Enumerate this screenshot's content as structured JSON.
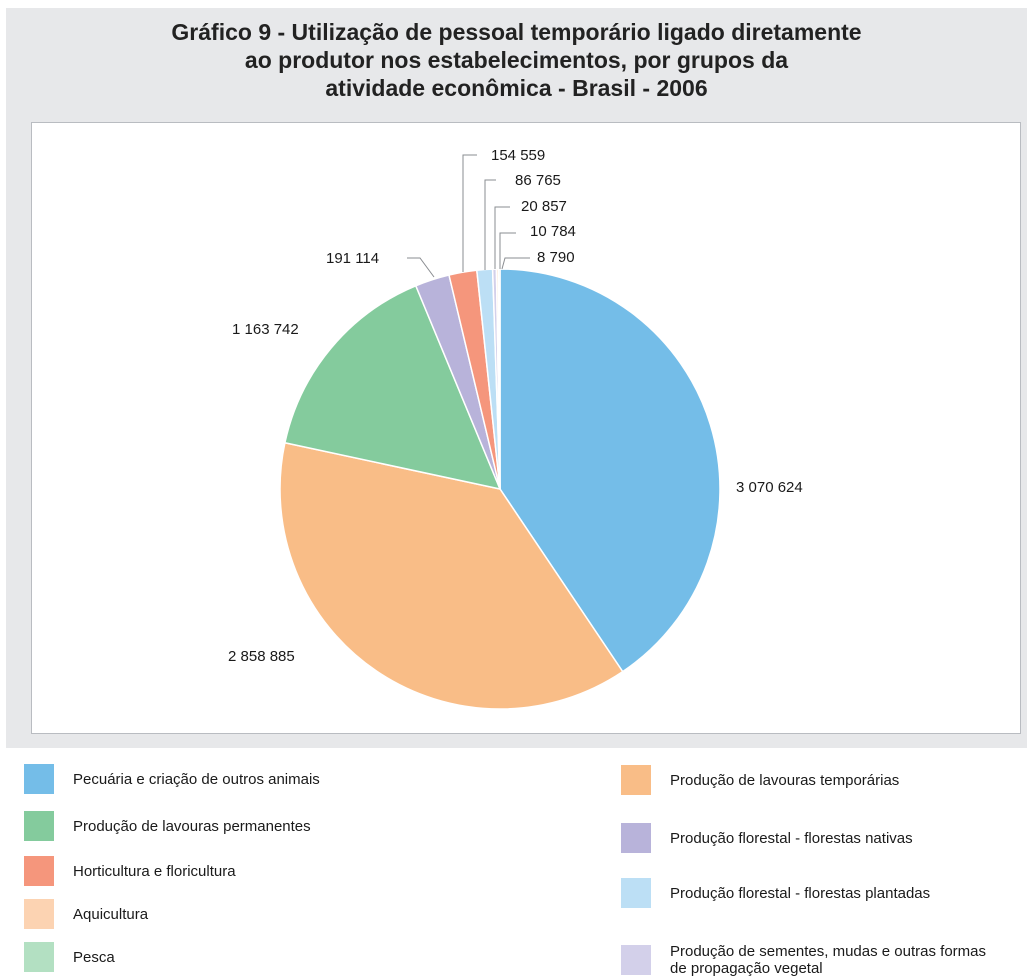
{
  "title": {
    "line1": "Gráfico 9 - Utilização de pessoal temporário ligado diretamente",
    "line2": "ao produtor nos estabelecimentos, por grupos da",
    "line3": "atividade econômica - Brasil - 2006"
  },
  "chart_data": {
    "type": "pie",
    "title": "Gráfico 9 - Utilização de pessoal temporário ligado diretamente ao produtor nos estabelecimentos, por grupos da atividade econômica - Brasil - 2006",
    "start": "12 o'clock, clockwise",
    "slices": [
      {
        "name": "Pecuária e criação de outros animais",
        "value": 3070624,
        "label": "3 070 624",
        "color": "#74bde8"
      },
      {
        "name": "Produção de lavouras temporárias",
        "value": 2858885,
        "label": "2 858 885",
        "color": "#f9bd87"
      },
      {
        "name": "Produção de lavouras permanentes",
        "value": 1163742,
        "label": "1 163 742",
        "color": "#84cb9d"
      },
      {
        "name": "Produção florestal - florestas nativas",
        "value": 191114,
        "label": "191 114",
        "color": "#b8b3da"
      },
      {
        "name": "Horticultura e floricultura",
        "value": 154559,
        "label": "154 559",
        "color": "#f5967c"
      },
      {
        "name": "Produção florestal - florestas plantadas",
        "value": 86765,
        "label": "86 765",
        "color": "#bcdff5"
      },
      {
        "name": "Produção de sementes, mudas e outras formas de propagação vegetal",
        "value": 20857,
        "label": "20 857",
        "color": "#d3d0ea"
      },
      {
        "name": "Aquicultura",
        "value": 10784,
        "label": "10 784",
        "color": "#fcd3b2"
      },
      {
        "name": "Pesca",
        "value": 8790,
        "label": "8 790",
        "color": "#b3e0c2"
      }
    ]
  },
  "legend": {
    "left": [
      {
        "label": "Pecuária e criação de outros animais",
        "color": "#74bde8"
      },
      {
        "label": "Produção de lavouras permanentes",
        "color": "#84cb9d"
      },
      {
        "label": "Horticultura e floricultura",
        "color": "#f5967c"
      },
      {
        "label": "Aquicultura",
        "color": "#fcd3b2"
      },
      {
        "label": "Pesca",
        "color": "#b3e0c2"
      }
    ],
    "right": [
      {
        "label": "Produção de lavouras temporárias",
        "color": "#f9bd87"
      },
      {
        "label": "Produção florestal - florestas nativas",
        "color": "#b8b3da"
      },
      {
        "label": "Produção florestal - florestas plantadas",
        "color": "#bcdff5"
      },
      {
        "label": "Produção de sementes, mudas e outras formas de propagação vegetal",
        "color": "#d3d0ea"
      }
    ]
  }
}
